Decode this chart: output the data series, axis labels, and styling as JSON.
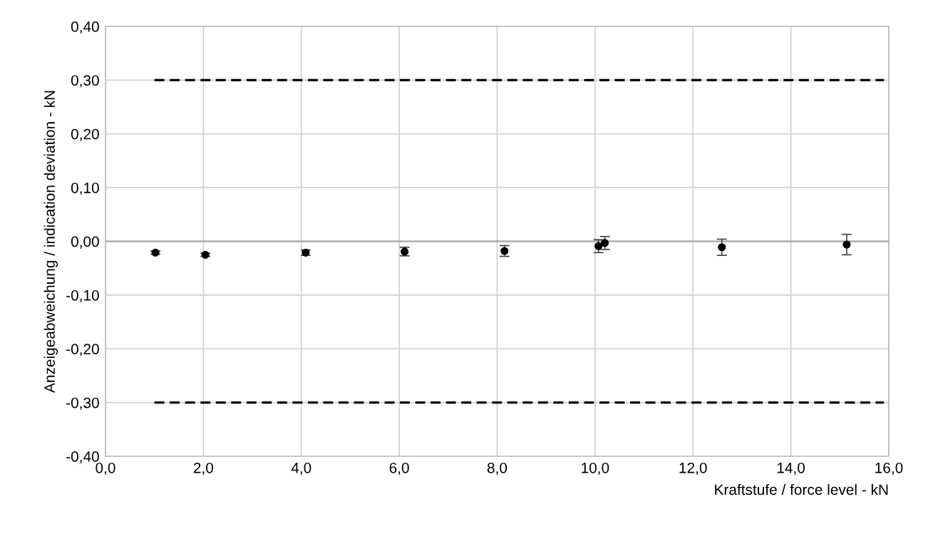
{
  "chart_data": {
    "type": "scatter",
    "xlabel": "Kraftstufe / force level - kN",
    "ylabel": "Anzeigeabweichung / indication deviation - kN",
    "series": [
      {
        "color": "#000000",
        "marker": "circle",
        "x": [
          1.02,
          2.04,
          4.09,
          6.11,
          8.15,
          10.07,
          10.2,
          12.59,
          15.14
        ],
        "values": [
          -0.021,
          -0.025,
          -0.021,
          -0.019,
          -0.018,
          -0.009,
          -0.003,
          -0.011,
          -0.006
        ],
        "errors": [
          0.003,
          0.003,
          0.005,
          0.008,
          0.01,
          0.012,
          0.012,
          0.015,
          0.019
        ]
      },
      {
        "type": "line",
        "color": "#000000",
        "line_style": "dashed",
        "x": [
          1.0,
          15.9
        ],
        "values": [
          0.3,
          0.3
        ]
      },
      {
        "type": "line",
        "color": "#000000",
        "line_style": "dashed",
        "x": [
          1.0,
          15.9
        ],
        "values": [
          -0.3,
          -0.3
        ]
      }
    ],
    "xlim": [
      0,
      16
    ],
    "ylim": [
      -0.4,
      0.4
    ],
    "xticks": [
      {
        "value": 0,
        "label": "0,0"
      },
      {
        "value": 2,
        "label": "2,0"
      },
      {
        "value": 4,
        "label": "4,0"
      },
      {
        "value": 6,
        "label": "6,0"
      },
      {
        "value": 8,
        "label": "8,0"
      },
      {
        "value": 10,
        "label": "10,0"
      },
      {
        "value": 12,
        "label": "12,0"
      },
      {
        "value": 14,
        "label": "14,0"
      },
      {
        "value": 16,
        "label": "16,0"
      }
    ],
    "yticks": [
      {
        "value": -0.4,
        "label": "-0,40"
      },
      {
        "value": -0.3,
        "label": "-0,30"
      },
      {
        "value": -0.2,
        "label": "-0,20"
      },
      {
        "value": -0.1,
        "label": "-0,10"
      },
      {
        "value": 0,
        "label": "0,00"
      },
      {
        "value": 0.1,
        "label": "0,10"
      },
      {
        "value": 0.2,
        "label": "0,20"
      },
      {
        "value": 0.3,
        "label": "0,30"
      },
      {
        "value": 0.4,
        "label": "0,40"
      }
    ],
    "grid": true,
    "legend": false
  }
}
